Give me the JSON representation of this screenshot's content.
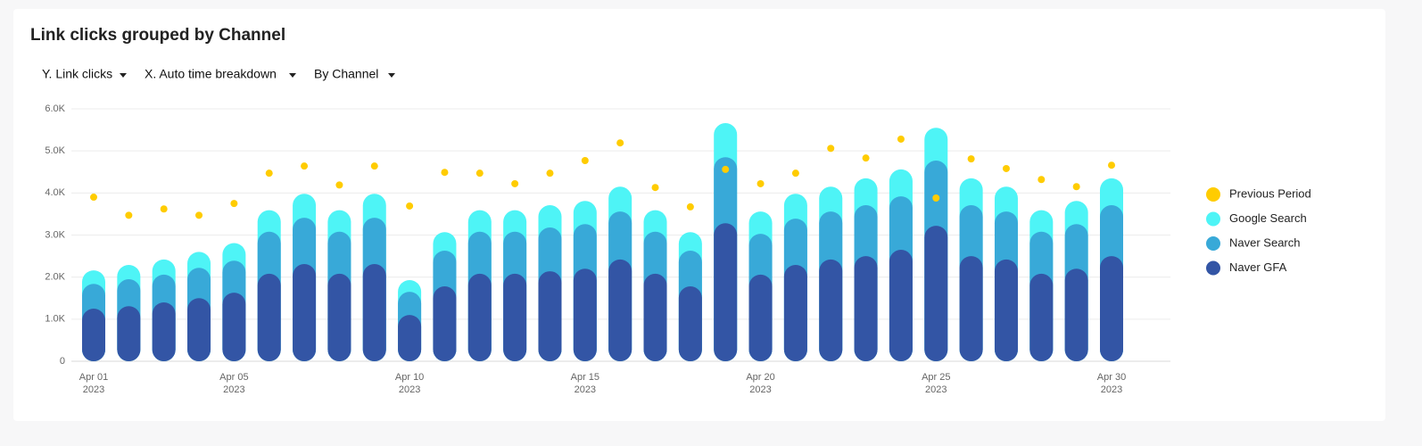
{
  "chart_data": {
    "type": "bar",
    "stacked": true,
    "title": "Link clicks grouped by Channel",
    "controls": [
      "Y. Link clicks",
      "X. Auto time breakdown",
      "By Channel"
    ],
    "categories": [
      "Apr 01",
      null,
      null,
      null,
      "Apr 05",
      null,
      null,
      null,
      null,
      "Apr 10",
      null,
      null,
      null,
      null,
      "Apr 15",
      null,
      null,
      null,
      null,
      "Apr 20",
      null,
      null,
      null,
      null,
      "Apr 25",
      null,
      null,
      null,
      null,
      "Apr 30"
    ],
    "category_sublabels": [
      "2023",
      null,
      null,
      null,
      "2023",
      null,
      null,
      null,
      null,
      "2023",
      null,
      null,
      null,
      null,
      "2023",
      null,
      null,
      null,
      null,
      "2023",
      null,
      null,
      null,
      null,
      "2023",
      null,
      null,
      null,
      null,
      "2023"
    ],
    "series": [
      {
        "name": "Previous Period",
        "type": "dot",
        "color": "#ffcc00",
        "values": [
          3900,
          3470,
          3620,
          3470,
          3750,
          4470,
          4640,
          4190,
          4640,
          3690,
          4490,
          4470,
          4220,
          4470,
          4770,
          5190,
          4130,
          3670,
          4560,
          4220,
          4470,
          5060,
          4830,
          5280,
          3880,
          4810,
          4580,
          4320,
          4150,
          4660
        ]
      },
      {
        "name": "Google Search",
        "type": "bar",
        "color": "#4ef4f6",
        "values": [
          320,
          340,
          360,
          380,
          420,
          510,
          570,
          510,
          570,
          280,
          440,
          510,
          510,
          530,
          550,
          590,
          510,
          440,
          810,
          530,
          590,
          590,
          640,
          640,
          780,
          640,
          590,
          510,
          550,
          640
        ]
      },
      {
        "name": "Naver Search",
        "type": "bar",
        "color": "#38a9d8",
        "values": [
          590,
          640,
          660,
          720,
          760,
          1000,
          1100,
          1000,
          1100,
          550,
          850,
          1000,
          1000,
          1040,
          1060,
          1140,
          1000,
          850,
          1570,
          970,
          1100,
          1140,
          1210,
          1270,
          1550,
          1210,
          1140,
          1000,
          1060,
          1210
        ]
      },
      {
        "name": "Naver GFA",
        "type": "bar",
        "color": "#3355a5",
        "values": [
          1250,
          1310,
          1400,
          1500,
          1630,
          2080,
          2310,
          2080,
          2310,
          1100,
          1780,
          2080,
          2080,
          2140,
          2200,
          2420,
          2080,
          1780,
          3280,
          2060,
          2290,
          2420,
          2500,
          2650,
          3220,
          2500,
          2420,
          2080,
          2200,
          2500
        ]
      }
    ],
    "ylim": [
      0,
      6000
    ],
    "yticks": [
      0,
      {
        "value": 1000,
        "label": "1.0K"
      },
      {
        "value": 2000,
        "label": "2.0K"
      },
      {
        "value": 3000,
        "label": "3.0K"
      },
      {
        "value": 4000,
        "label": "4.0K"
      },
      {
        "value": 5000,
        "label": "5.0K"
      },
      {
        "value": 6000,
        "label": "6.0K"
      }
    ],
    "grid": true,
    "legend": "right"
  }
}
